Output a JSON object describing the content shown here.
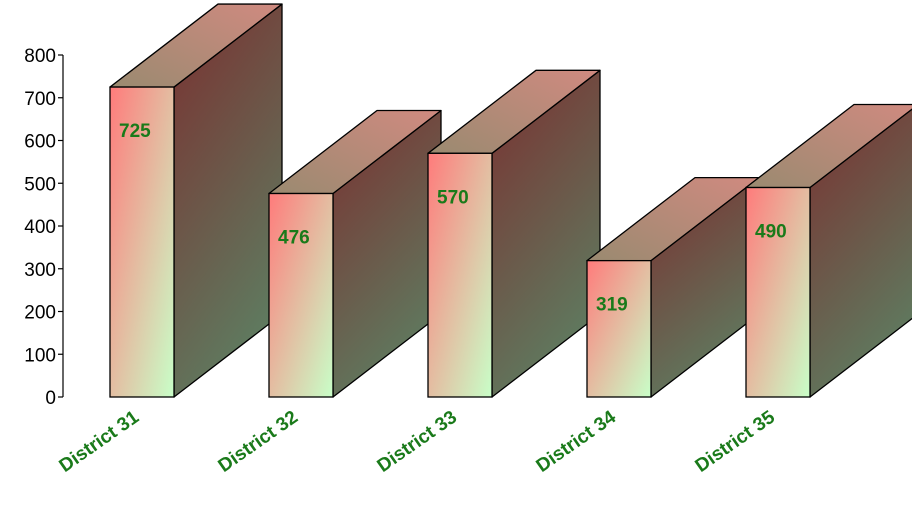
{
  "chart_data": {
    "type": "bar",
    "style": "3d-box",
    "title": "",
    "xlabel": "",
    "ylabel": "",
    "ylim": [
      0,
      800
    ],
    "yticks": [
      0,
      100,
      200,
      300,
      400,
      500,
      600,
      700,
      800
    ],
    "ytick_labels": [
      "0",
      "100",
      "200",
      "300",
      "400",
      "500",
      "600",
      "700",
      "800"
    ],
    "categories": [
      "District 31",
      "District 32",
      "District 33",
      "District 34",
      "District 35"
    ],
    "values": [
      725,
      476,
      570,
      319,
      490
    ],
    "data_labels": [
      "725",
      "476",
      "570",
      "319",
      "490"
    ],
    "grid": false,
    "legend": "none",
    "colors": {
      "front_top": "#ff7b7b",
      "front_bottom": "#c8ffc8",
      "side_top": "#7a3030",
      "side_bottom": "#5f7a5f",
      "top_face": "#c09080",
      "label_text": "#1a7a1a",
      "outline": "#000000"
    }
  }
}
